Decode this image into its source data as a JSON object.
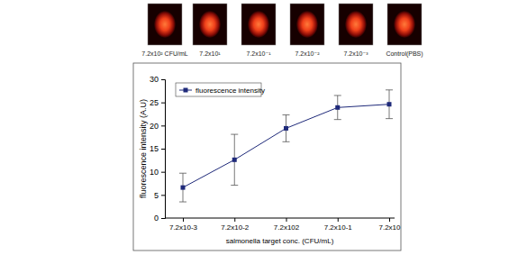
{
  "image_panel": {
    "labels": [
      "7.2x10² CFU/mL",
      "7.2x10¹",
      "7.2x10⁻¹",
      "7.2x10⁻²",
      "7.2x10⁻³",
      "Control(PBS)"
    ]
  },
  "chart_data": {
    "type": "line",
    "x_label": "salmonella target conc. (CFU/mL)",
    "y_label": "fluorescence intensity (A.U)",
    "categories": [
      "7.2x10-3",
      "7.2x10-2",
      "7.2x102",
      "7.2x10-1",
      "7.2x10"
    ],
    "series": [
      {
        "name": "fluorescence intensity",
        "color": "#1f2a7a",
        "marker": "square",
        "line_style": "solid",
        "values": [
          6.6,
          12.6,
          19.4,
          23.9,
          24.6
        ],
        "errors": [
          3.1,
          5.5,
          2.9,
          2.6,
          3.1
        ]
      }
    ],
    "ylim": [
      0,
      30
    ],
    "yticks": [
      0,
      5,
      10,
      15,
      20,
      25,
      30
    ],
    "grid": false,
    "legend": "upper left"
  }
}
